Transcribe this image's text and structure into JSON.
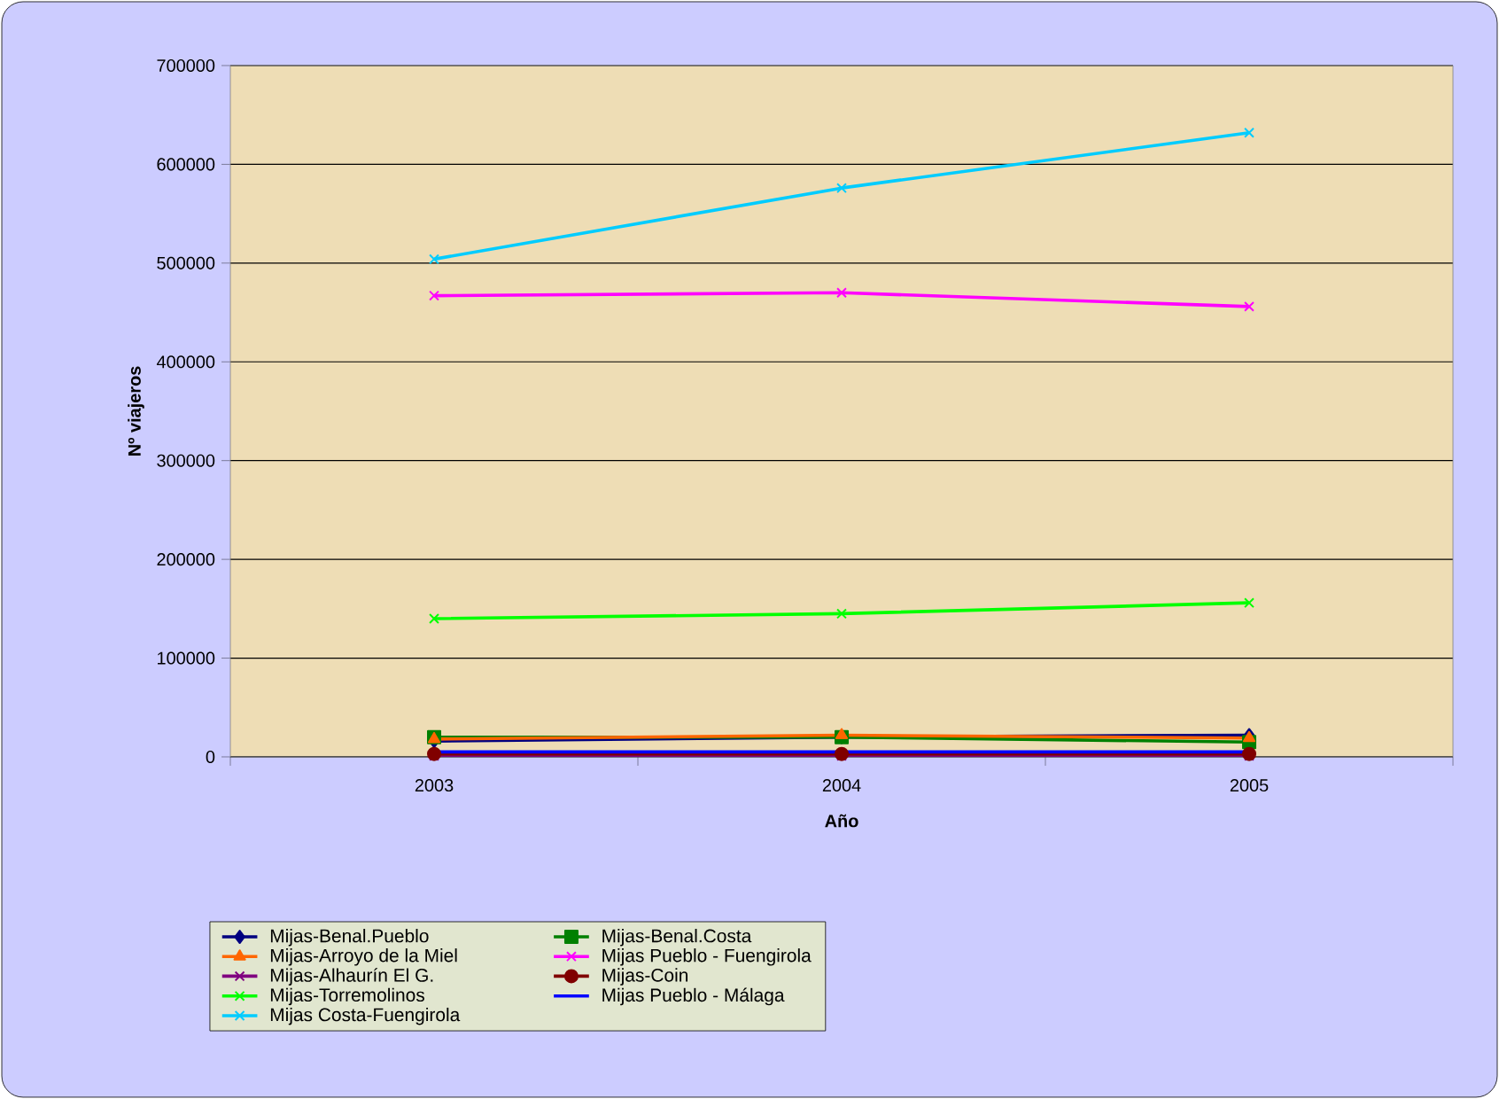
{
  "chart_data": {
    "type": "line",
    "xlabel": "Año",
    "ylabel": "Nº viajeros",
    "categories": [
      "2003",
      "2004",
      "2005"
    ],
    "series": [
      {
        "name": "Mijas-Benal.Pueblo",
        "color": "#000080",
        "marker": "diamond",
        "values": [
          16000,
          20000,
          22000
        ]
      },
      {
        "name": "Mijas-Benal.Costa",
        "color": "#008000",
        "marker": "square",
        "values": [
          20000,
          20000,
          15000
        ]
      },
      {
        "name": "Mijas-Arroyo de la Miel",
        "color": "#ff6600",
        "marker": "triangle",
        "values": [
          18000,
          22000,
          19000
        ]
      },
      {
        "name": "Mijas Pueblo - Fuengirola",
        "color": "#ff00ff",
        "marker": "cross",
        "values": [
          467000,
          470000,
          456000
        ]
      },
      {
        "name": "Mijas-Alhaurín El G.",
        "color": "#800080",
        "marker": "cross",
        "values": [
          1000,
          1000,
          1000
        ]
      },
      {
        "name": "Mijas-Coin",
        "color": "#800000",
        "marker": "circle",
        "values": [
          3000,
          3000,
          3000
        ]
      },
      {
        "name": "Mijas-Torremolinos",
        "color": "#00ff00",
        "marker": "cross",
        "values": [
          140000,
          145000,
          156000
        ]
      },
      {
        "name": "Mijas Pueblo - Málaga",
        "color": "#0000ff",
        "marker": "none",
        "values": [
          5000,
          5000,
          5000
        ]
      },
      {
        "name": "Mijas Costa-Fuengirola",
        "color": "#00ccff",
        "marker": "cross",
        "values": [
          504000,
          576000,
          632000
        ]
      }
    ],
    "ylim": [
      0,
      700000
    ],
    "yticks": [
      0,
      100000,
      200000,
      300000,
      400000,
      500000,
      600000,
      700000
    ],
    "grid": "y",
    "legend": "bottom"
  }
}
